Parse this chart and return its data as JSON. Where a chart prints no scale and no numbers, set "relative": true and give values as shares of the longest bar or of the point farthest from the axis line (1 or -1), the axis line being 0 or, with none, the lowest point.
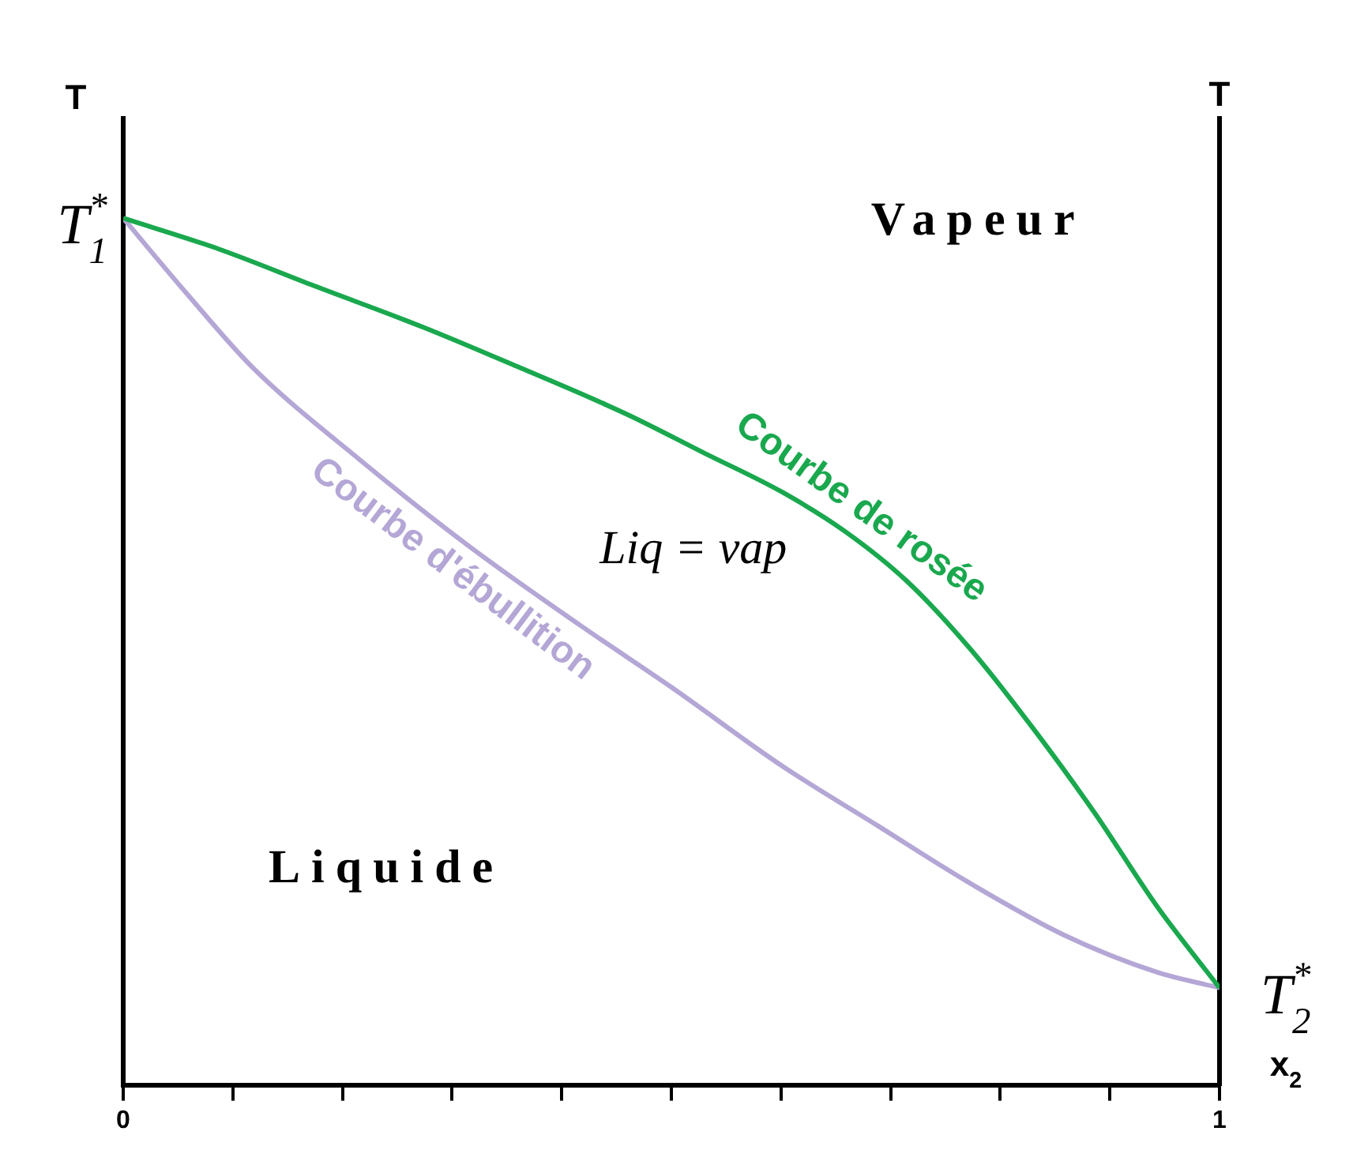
{
  "chart_data": {
    "type": "line",
    "relative": true,
    "xlabel": "x$_{2}$",
    "ylabel": "T",
    "y2label": "T",
    "xlim": [
      0,
      1
    ],
    "xticks": [
      0,
      {
        "value": 0.1,
        "label": null
      },
      {
        "value": 0.2,
        "label": null
      },
      {
        "value": 0.3,
        "label": null
      },
      {
        "value": 0.4,
        "label": null
      },
      {
        "value": 0.5,
        "label": null
      },
      {
        "value": 0.6,
        "label": null
      },
      {
        "value": 0.7,
        "label": null
      },
      {
        "value": 0.8,
        "label": null
      },
      {
        "value": 0.9,
        "label": null
      },
      1
    ],
    "tick_labels": "x",
    "grid": false,
    "legend": false,
    "marker": "none",
    "line_style": "solid",
    "series": [
      {
        "name": "Courbe de rosée",
        "color": "#1aa84e",
        "x": [
          0,
          0.088,
          0.174,
          0.274,
          0.359,
          0.459,
          0.53,
          0.601,
          0.658,
          0.715,
          0.772,
          0.829,
          0.886,
          0.943,
          1
        ],
        "values": [
          1,
          0.964,
          0.922,
          0.874,
          0.829,
          0.774,
          0.729,
          0.684,
          0.639,
          0.581,
          0.504,
          0.413,
          0.314,
          0.206,
          0.112
        ]
      },
      {
        "name": "Courbe d'ébullition",
        "color": "#b4a7d6",
        "x": [
          0,
          0.06,
          0.117,
          0.217,
          0.316,
          0.416,
          0.501,
          0.601,
          0.687,
          0.772,
          0.858,
          0.943,
          1
        ],
        "values": [
          1,
          0.91,
          0.829,
          0.72,
          0.621,
          0.531,
          0.458,
          0.368,
          0.3,
          0.233,
          0.173,
          0.13,
          0.112
        ]
      }
    ],
    "annotations": [
      {
        "text": "T$_{1}$$^{*}$",
        "x": 0,
        "y": 1
      },
      {
        "text": "T$_{2}$$^{*}$",
        "x": 1,
        "y": 0.112
      },
      "Vapeur",
      "Liquide",
      "Liq = vap"
    ]
  }
}
